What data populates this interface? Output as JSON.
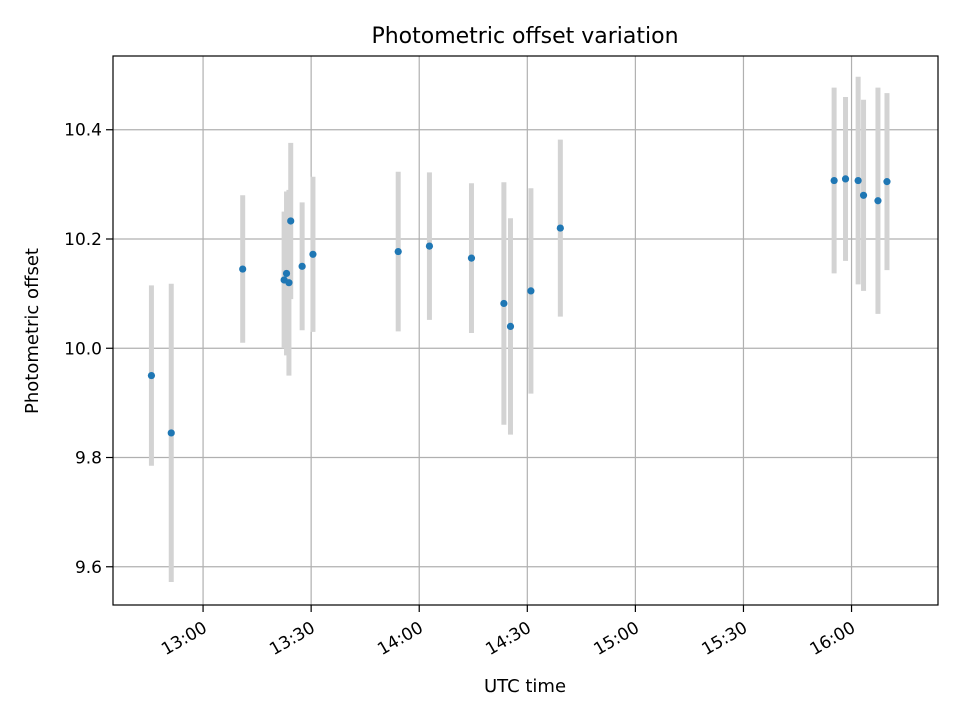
{
  "chart_data": {
    "type": "scatter",
    "title": "Photometric offset variation",
    "xlabel": "UTC time",
    "ylabel": "Photometric offset",
    "xlim": [
      "12:35",
      "16:24"
    ],
    "ylim": [
      9.53,
      10.535
    ],
    "x_ticks": [
      "13:00",
      "13:30",
      "14:00",
      "14:30",
      "15:00",
      "15:30",
      "16:00"
    ],
    "y_ticks": [
      9.6,
      9.8,
      10.0,
      10.2,
      10.4
    ],
    "grid": true,
    "legend": "none",
    "colors": {
      "point": "#1f77b4",
      "errorbar": "#d3d3d3",
      "grid": "#b0b0b0"
    },
    "points": [
      {
        "t": "12:45:40",
        "y": 9.95,
        "err": 0.165
      },
      {
        "t": "12:51:10",
        "y": 9.845,
        "err": 0.273
      },
      {
        "t": "13:11:00",
        "y": 10.145,
        "err": 0.135
      },
      {
        "t": "13:22:30",
        "y": 10.125,
        "err": 0.125
      },
      {
        "t": "13:23:10",
        "y": 10.137,
        "err": 0.15
      },
      {
        "t": "13:23:50",
        "y": 10.12,
        "err": 0.17
      },
      {
        "t": "13:24:20",
        "y": 10.233,
        "err": 0.143
      },
      {
        "t": "13:27:30",
        "y": 10.15,
        "err": 0.117
      },
      {
        "t": "13:30:30",
        "y": 10.172,
        "err": 0.142
      },
      {
        "t": "13:54:10",
        "y": 10.177,
        "err": 0.146
      },
      {
        "t": "14:02:50",
        "y": 10.187,
        "err": 0.135
      },
      {
        "t": "14:14:30",
        "y": 10.165,
        "err": 0.137
      },
      {
        "t": "14:23:30",
        "y": 10.082,
        "err": 0.222
      },
      {
        "t": "14:25:20",
        "y": 10.04,
        "err": 0.198
      },
      {
        "t": "14:31:00",
        "y": 10.105,
        "err": 0.188
      },
      {
        "t": "14:39:10",
        "y": 10.22,
        "err": 0.162
      },
      {
        "t": "15:55:10",
        "y": 10.307,
        "err": 0.17
      },
      {
        "t": "15:58:20",
        "y": 10.31,
        "err": 0.15
      },
      {
        "t": "16:01:50",
        "y": 10.307,
        "err": 0.19
      },
      {
        "t": "16:03:20",
        "y": 10.28,
        "err": 0.175
      },
      {
        "t": "16:07:20",
        "y": 10.27,
        "err": 0.207
      },
      {
        "t": "16:09:50",
        "y": 10.305,
        "err": 0.162
      }
    ]
  }
}
